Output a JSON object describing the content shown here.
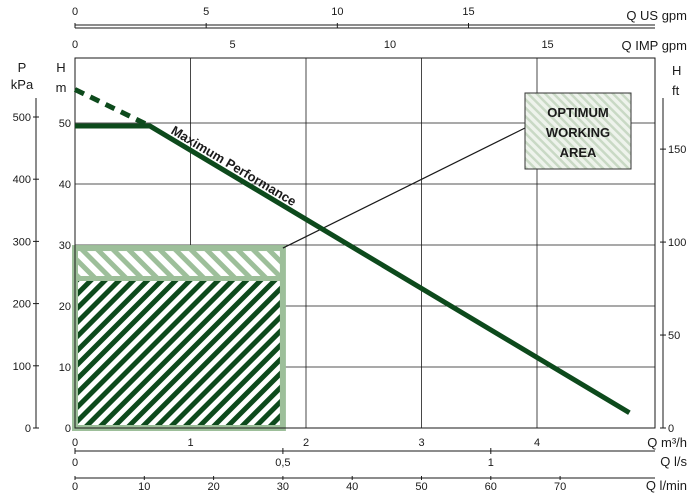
{
  "chart_data": {
    "type": "line",
    "axes": {
      "x_flow_m3h": {
        "label": "Q m³/h",
        "ticks": [
          0,
          1,
          2,
          3,
          4
        ],
        "range": [
          0,
          5
        ]
      },
      "x_flow_ls": {
        "label": "Q l/s",
        "ticks": [
          0,
          0.5,
          1
        ],
        "tick_labels": [
          "0",
          "0,5",
          "1"
        ]
      },
      "x_flow_lmin": {
        "label": "Q l/min",
        "ticks": [
          0,
          10,
          20,
          30,
          40,
          50,
          60,
          70
        ]
      },
      "x_flow_usgpm": {
        "label": "Q US gpm",
        "ticks": [
          0,
          5,
          10,
          15
        ]
      },
      "x_flow_impgpm": {
        "label": "Q IMP gpm",
        "ticks": [
          0,
          5,
          10,
          15
        ]
      },
      "y_head_m": {
        "label": "H\nm",
        "ticks": [
          0,
          10,
          20,
          30,
          40,
          50
        ],
        "range": [
          0,
          55
        ]
      },
      "y_pressure_kpa": {
        "label": "P\nkPa",
        "ticks": [
          0,
          100,
          200,
          300,
          400,
          500
        ]
      },
      "y_head_ft": {
        "label": "H\nft",
        "ticks": [
          0,
          50,
          100,
          150
        ]
      }
    },
    "grid": true,
    "series": [
      {
        "name": "Maximum Performance",
        "color": "#0d4a1c",
        "x": [
          0,
          0.65,
          4.8
        ],
        "y": [
          49.5,
          49.5,
          2.5
        ]
      }
    ],
    "extrapolated": {
      "color": "#0d4a1c",
      "x": [
        0,
        0.65
      ],
      "y": [
        55.5,
        49.5
      ]
    },
    "working_area": {
      "x_range": [
        0,
        1.8
      ],
      "y_range": [
        0,
        29.5
      ],
      "split_y": 24.5,
      "border_color": "#9dbf9a",
      "label": [
        "OPTIMUM",
        "WORKING",
        "AREA"
      ]
    }
  }
}
